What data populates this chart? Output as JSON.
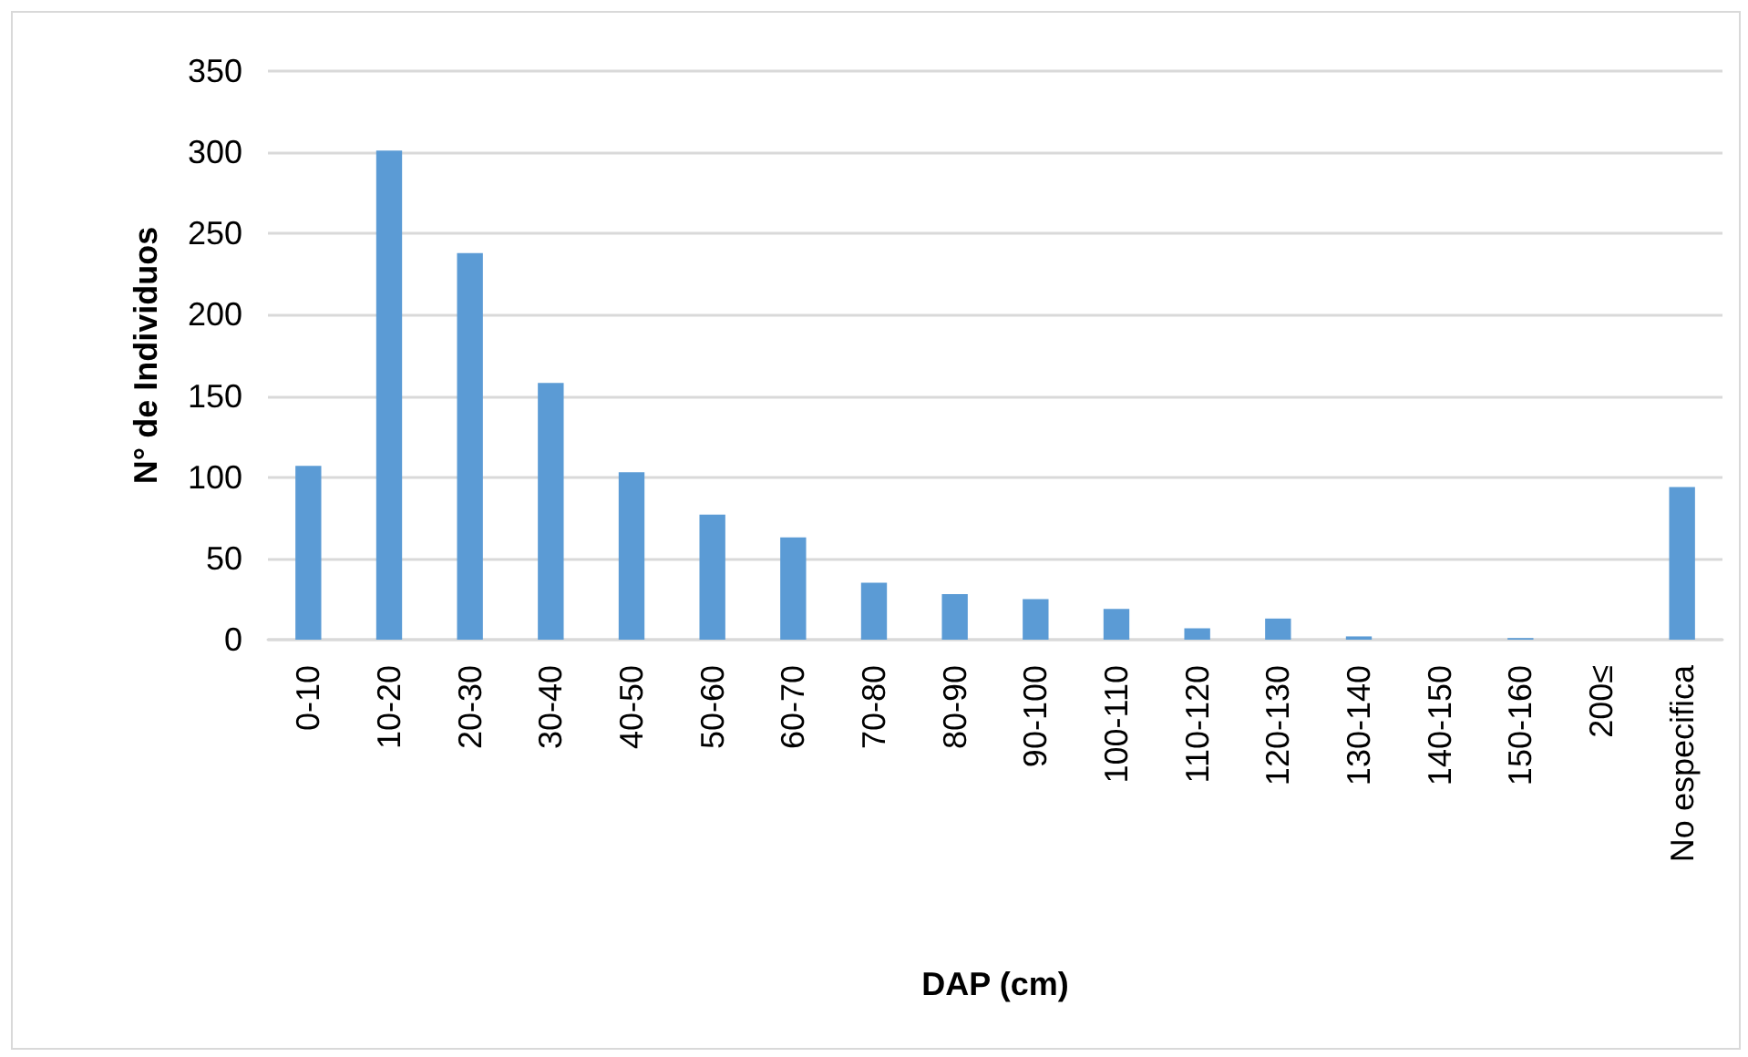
{
  "chart_data": {
    "type": "bar",
    "xlabel": "DAP (cm)",
    "ylabel": "N° de Individuos",
    "categories": [
      "0-10",
      "10-20",
      "20-30",
      "30-40",
      "40-50",
      "50-60",
      "60-70",
      "70-80",
      "80-90",
      "90-100",
      "100-110",
      "110-120",
      "120-130",
      "130-140",
      "140-150",
      "150-160",
      "200≤",
      "No especifica"
    ],
    "values": [
      107,
      301,
      238,
      158,
      103,
      77,
      63,
      35,
      28,
      25,
      19,
      7,
      13,
      2,
      0,
      1,
      0,
      94
    ],
    "color": "#5b9bd5",
    "ylim": [
      0,
      350
    ],
    "yticks": [
      0,
      50,
      100,
      150,
      200,
      250,
      300,
      350
    ],
    "grid": "y"
  }
}
